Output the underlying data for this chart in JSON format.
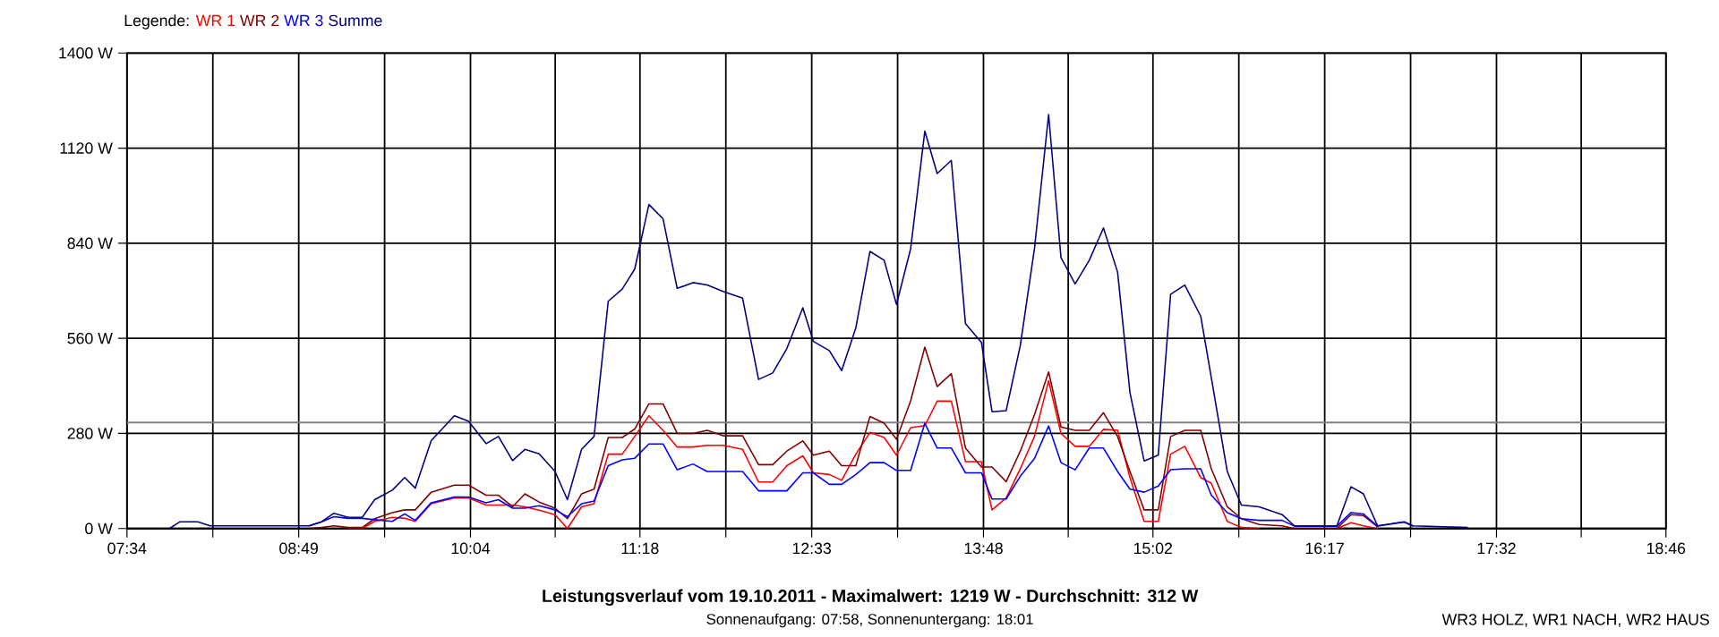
{
  "chart_data": {
    "type": "line",
    "title": "Leistungsverlauf vom 19.10.2011 - Maximalwert: 1219 W - Durchschnitt: 312 W",
    "subtitle": "Sonnenaufgang: 07:58, Sonnenuntergang: 18:01",
    "annotations": [
      "WR3 HOLZ, WR1 NACH, WR2 HAUS"
    ],
    "legend_title": "Legende:",
    "legend": "top left",
    "grid": true,
    "xlim": [
      7.5667,
      18.7667
    ],
    "ylim": [
      0,
      1400
    ],
    "xticks": [
      {
        "value": 7.5667,
        "label": "07:34"
      },
      {
        "value": 8.1917,
        "label": null
      },
      {
        "value": 8.8167,
        "label": "08:49"
      },
      {
        "value": 9.4417,
        "label": null
      },
      {
        "value": 10.0667,
        "label": "10:04"
      },
      {
        "value": 10.6833,
        "label": null
      },
      {
        "value": 11.3,
        "label": "11:18"
      },
      {
        "value": 11.925,
        "label": null
      },
      {
        "value": 12.55,
        "label": "12:33"
      },
      {
        "value": 13.175,
        "label": null
      },
      {
        "value": 13.8,
        "label": "13:48"
      },
      {
        "value": 14.4167,
        "label": null
      },
      {
        "value": 15.0333,
        "label": "15:02"
      },
      {
        "value": 15.6583,
        "label": null
      },
      {
        "value": 16.2833,
        "label": "16:17"
      },
      {
        "value": 16.9083,
        "label": null
      },
      {
        "value": 17.5333,
        "label": "17:32"
      },
      {
        "value": 18.15,
        "label": null
      },
      {
        "value": 18.7667,
        "label": "18:46"
      }
    ],
    "yticks": [
      {
        "value": 0,
        "label": "0 W"
      },
      {
        "value": 280,
        "label": "280 W"
      },
      {
        "value": 560,
        "label": "560 W"
      },
      {
        "value": 840,
        "label": "840 W"
      },
      {
        "value": 1120,
        "label": "1120 W"
      },
      {
        "value": 1400,
        "label": "1400 W"
      }
    ],
    "ref_lines": [
      {
        "axis": "y",
        "value": 312,
        "color": "#808080"
      }
    ],
    "x": [
      7.876,
      7.953,
      8.082,
      8.172,
      8.339,
      8.597,
      8.893,
      8.983,
      9.073,
      9.176,
      9.279,
      9.369,
      9.498,
      9.588,
      9.665,
      9.781,
      9.949,
      10.052,
      10.18,
      10.27,
      10.373,
      10.463,
      10.566,
      10.682,
      10.772,
      10.875,
      10.966,
      11.069,
      11.171,
      11.262,
      11.365,
      11.468,
      11.571,
      11.686,
      11.789,
      11.905,
      12.047,
      12.163,
      12.266,
      12.369,
      12.485,
      12.562,
      12.678,
      12.768,
      12.871,
      12.974,
      13.077,
      13.167,
      13.27,
      13.373,
      13.463,
      13.566,
      13.669,
      13.785,
      13.862,
      13.965,
      14.068,
      14.171,
      14.274,
      14.364,
      14.467,
      14.57,
      14.673,
      14.776,
      14.866,
      14.969,
      15.072,
      15.162,
      15.265,
      15.381,
      15.458,
      15.574,
      15.677,
      15.806,
      15.973,
      16.063,
      16.372,
      16.475,
      16.565,
      16.668,
      16.861,
      16.926,
      17.325
    ],
    "series": [
      {
        "name": "WR 1",
        "color": "#ff0000",
        "values": [
          null,
          null,
          null,
          null,
          null,
          null,
          null,
          null,
          null,
          0,
          0,
          21,
          33,
          30,
          21,
          73,
          90,
          90,
          69,
          69,
          69,
          64,
          54,
          41,
          0,
          64,
          73,
          219,
          219,
          271,
          332,
          289,
          240,
          240,
          245,
          245,
          233,
          137,
          137,
          185,
          214,
          164,
          159,
          142,
          219,
          283,
          268,
          216,
          297,
          303,
          375,
          375,
          197,
          197,
          55,
          90,
          176,
          271,
          435,
          280,
          242,
          242,
          292,
          289,
          150,
          21,
          21,
          219,
          242,
          150,
          133,
          21,
          3,
          0,
          null,
          null,
          0,
          17,
          8,
          0,
          null,
          null,
          null
        ]
      },
      {
        "name": "WR 2",
        "color": "#800000",
        "values": [
          null,
          null,
          null,
          null,
          null,
          null,
          0,
          3,
          8,
          3,
          3,
          29,
          47,
          55,
          55,
          107,
          128,
          128,
          98,
          98,
          64,
          102,
          78,
          60,
          29,
          102,
          116,
          268,
          268,
          293,
          367,
          367,
          280,
          280,
          289,
          273,
          273,
          188,
          188,
          228,
          258,
          216,
          228,
          185,
          185,
          330,
          310,
          263,
          376,
          534,
          418,
          456,
          237,
          181,
          181,
          138,
          228,
          335,
          461,
          299,
          289,
          289,
          341,
          271,
          168,
          55,
          55,
          271,
          289,
          289,
          176,
          64,
          29,
          12,
          8,
          0,
          0,
          41,
          38,
          5,
          null,
          null,
          null
        ]
      },
      {
        "name": "WR 3",
        "color": "#0000ff",
        "values": [
          null,
          null,
          null,
          null,
          null,
          null,
          8,
          20,
          35,
          30,
          30,
          26,
          21,
          43,
          24,
          76,
          93,
          93,
          76,
          85,
          60,
          60,
          67,
          55,
          35,
          73,
          81,
          185,
          202,
          207,
          249,
          249,
          173,
          190,
          168,
          168,
          168,
          111,
          111,
          111,
          164,
          164,
          130,
          130,
          159,
          194,
          194,
          171,
          171,
          310,
          237,
          237,
          164,
          164,
          87,
          87,
          154,
          206,
          302,
          194,
          173,
          237,
          237,
          168,
          116,
          107,
          125,
          173,
          176,
          176,
          98,
          47,
          29,
          24,
          24,
          7,
          7,
          47,
          43,
          7,
          19,
          7,
          null
        ]
      },
      {
        "name": "Summe",
        "color": "#000080",
        "values": [
          0,
          20,
          20,
          8,
          8,
          8,
          8,
          20,
          45,
          33,
          33,
          85,
          113,
          150,
          119,
          259,
          332,
          316,
          250,
          271,
          200,
          233,
          220,
          168,
          85,
          233,
          271,
          669,
          705,
          764,
          954,
          912,
          707,
          724,
          717,
          698,
          678,
          439,
          458,
          530,
          650,
          551,
          524,
          465,
          591,
          816,
          790,
          660,
          824,
          1170,
          1045,
          1084,
          603,
          548,
          344,
          347,
          539,
          824,
          1219,
          798,
          720,
          790,
          885,
          755,
          400,
          199,
          216,
          690,
          717,
          625,
          444,
          168,
          69,
          64,
          41,
          8,
          8,
          123,
          102,
          8,
          20,
          8,
          3
        ]
      }
    ]
  }
}
